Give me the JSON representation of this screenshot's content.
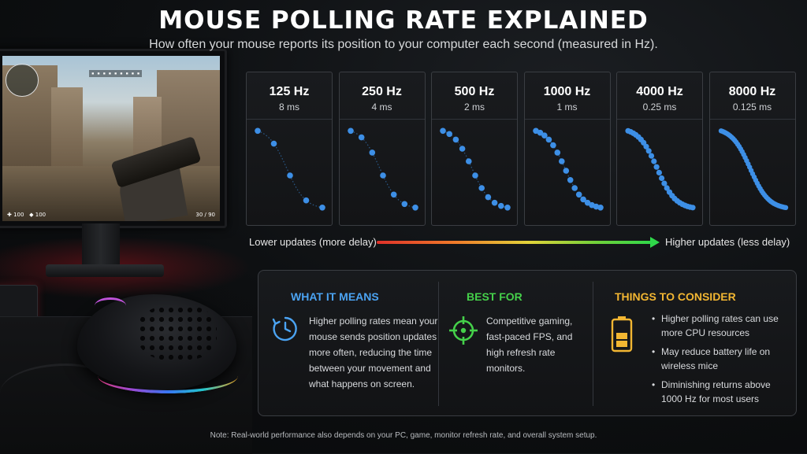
{
  "header": {
    "title": "MOUSE POLLING RATE EXPLAINED",
    "subtitle": "How often your mouse reports its position to your computer each second (measured in Hz)."
  },
  "game_hud": {
    "top_bar": "▪ ▪ ▪ ▪ ▪ ▪ ▪ ▪ ▪",
    "health": "✚ 100",
    "armor": "◆ 100",
    "ammo": "30 / 90"
  },
  "rates": [
    {
      "hz": "125 Hz",
      "ms": "8 ms",
      "dots": 5
    },
    {
      "hz": "250 Hz",
      "ms": "4 ms",
      "dots": 7
    },
    {
      "hz": "500 Hz",
      "ms": "2 ms",
      "dots": 11
    },
    {
      "hz": "1000 Hz",
      "ms": "1 ms",
      "dots": 16
    },
    {
      "hz": "4000 Hz",
      "ms": "0.25 ms",
      "dots": 26
    },
    {
      "hz": "8000 Hz",
      "ms": "0.125 ms",
      "dots": 44
    }
  ],
  "scale": {
    "low_label": "Lower updates (more delay)",
    "high_label": "Higher updates (less delay)"
  },
  "sections": {
    "what_it_means": {
      "title": "WHAT IT MEANS",
      "text": "Higher polling rates mean your mouse sends position updates more often, reducing the time between your movement and what happens on screen."
    },
    "best_for": {
      "title": "BEST FOR",
      "text": "Competitive gaming, fast-paced FPS, and high refresh rate monitors."
    },
    "things_to_consider": {
      "title": "THINGS TO CONSIDER",
      "bullets": [
        "Higher polling rates can use more CPU resources",
        "May reduce battery life on wireless mice",
        "Diminishing returns above 1000 Hz for most users"
      ]
    }
  },
  "note": "Note: Real-world performance also depends on your PC, game, monitor refresh rate, and overall system setup.",
  "colors": {
    "accent_blue": "#4ba3f2",
    "accent_green": "#45d04a",
    "accent_gold": "#f2b632",
    "dot_blue": "#3d8fe6"
  }
}
